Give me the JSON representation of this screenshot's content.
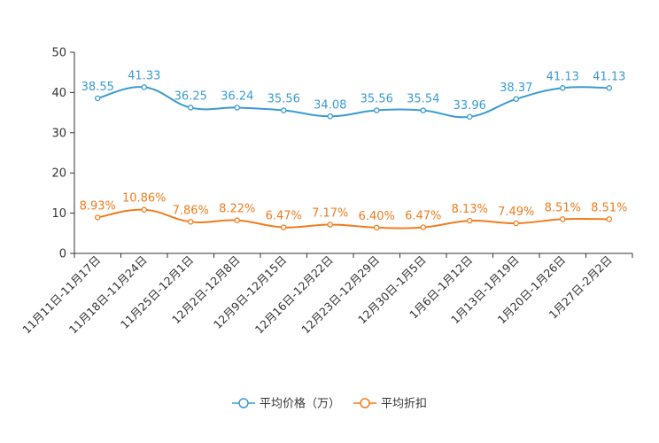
{
  "chart_data": {
    "type": "line",
    "title": "",
    "xlabel": "",
    "ylabel": "",
    "ylim": [
      0,
      50
    ],
    "yticks": [
      "0",
      "10",
      "20",
      "30",
      "40",
      "50"
    ],
    "categories": [
      "11月11日-11月17日",
      "11月18日-11月24日",
      "11月25日-12月1日",
      "12月2日-12月8日",
      "12月9日-12月15日",
      "12月16日-12月22日",
      "12月23日-12月29日",
      "12月30日-1月5日",
      "1月6日-1月12日",
      "1月13日-1月19日",
      "1月20日-1月26日",
      "1月27日-2月2日"
    ],
    "series": [
      {
        "name": "平均价格（万）",
        "color": "#3a9bd2",
        "values": [
          38.55,
          41.33,
          36.25,
          36.24,
          35.56,
          34.08,
          35.56,
          35.54,
          33.96,
          38.37,
          41.13,
          41.13
        ],
        "labels": [
          "38.55",
          "41.33",
          "36.25",
          "36.24",
          "35.56",
          "34.08",
          "35.56",
          "35.54",
          "33.96",
          "38.37",
          "41.13",
          "41.13"
        ]
      },
      {
        "name": "平均折扣",
        "color": "#f07c1e",
        "values": [
          8.93,
          10.86,
          7.86,
          8.22,
          6.47,
          7.17,
          6.4,
          6.47,
          8.13,
          7.49,
          8.51,
          8.51
        ],
        "labels": [
          "8.93%",
          "10.86%",
          "7.86%",
          "8.22%",
          "6.47%",
          "7.17%",
          "6.40%",
          "6.47%",
          "8.13%",
          "7.49%",
          "8.51%",
          "8.51%"
        ]
      }
    ],
    "legend_position": "bottom-center"
  }
}
